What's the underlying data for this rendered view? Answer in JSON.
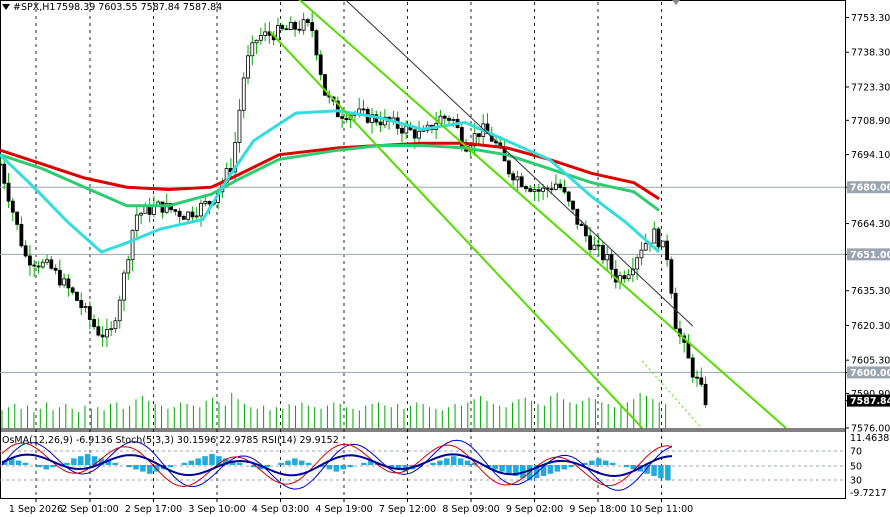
{
  "header": {
    "symbol": "#SPX,H1",
    "ohlc": "7598.39 7603.55 7587.84 7587.84"
  },
  "indicator_header": "OsMA(12,26,9) -6.9136  Stoch(5,3,3) 30.1596 22.9785  RSI(14) 29.9152",
  "colors": {
    "background": "#ffffff",
    "candle": "#00aa00",
    "volume": "#00aa00",
    "ma_red": "#dd0000",
    "ma_green": "#2ecc71",
    "ma_cyan": "#33dddd",
    "channel": "#55dd00",
    "osma": "#22aadd",
    "stoch_main": "#0000cc",
    "stoch_signal": "#cc0000",
    "rsi": "#000099",
    "level_line": "#9aa5b0",
    "price_tag": "#000000"
  },
  "chart_data": {
    "type": "candlestick",
    "instrument": "#SPX",
    "timeframe": "H1",
    "y_ticks": [
      "7753.30",
      "7738.30",
      "7723.30",
      "7708.90",
      "7694.10",
      "7680.00",
      "7664.30",
      "7651.00",
      "7635.30",
      "7620.30",
      "7605.30",
      "7600.00",
      "7590.90",
      "7587.84",
      "7576.00"
    ],
    "ylim": [
      7576.0,
      7760.0
    ],
    "x_ticks": [
      "1 Sep 2026",
      "2 Sep 01:00",
      "2 Sep 17:00",
      "3 Sep 10:00",
      "4 Sep 03:00",
      "4 Sep 19:00",
      "7 Sep 12:00",
      "8 Sep 09:00",
      "9 Sep 02:00",
      "9 Sep 18:00",
      "10 Sep 11:00"
    ],
    "horizontal_levels": [
      7680.0,
      7651.0,
      7600.0
    ],
    "last_price": 7587.84,
    "close_path": [
      [
        0,
        7690
      ],
      [
        0.03,
        7650
      ],
      [
        0.06,
        7645
      ],
      [
        0.09,
        7632
      ],
      [
        0.115,
        7618
      ],
      [
        0.13,
        7615
      ],
      [
        0.145,
        7638
      ],
      [
        0.16,
        7668
      ],
      [
        0.19,
        7672
      ],
      [
        0.22,
        7668
      ],
      [
        0.25,
        7674
      ],
      [
        0.275,
        7690
      ],
      [
        0.29,
        7732
      ],
      [
        0.305,
        7745
      ],
      [
        0.32,
        7746
      ],
      [
        0.34,
        7748
      ],
      [
        0.36,
        7750
      ],
      [
        0.37,
        7748
      ],
      [
        0.385,
        7720
      ],
      [
        0.4,
        7712
      ],
      [
        0.42,
        7712
      ],
      [
        0.44,
        7710
      ],
      [
        0.46,
        7708
      ],
      [
        0.48,
        7705
      ],
      [
        0.5,
        7702
      ],
      [
        0.52,
        7710
      ],
      [
        0.535,
        7710
      ],
      [
        0.55,
        7698
      ],
      [
        0.57,
        7705
      ],
      [
        0.585,
        7700
      ],
      [
        0.6,
        7688
      ],
      [
        0.62,
        7682
      ],
      [
        0.64,
        7678
      ],
      [
        0.66,
        7682
      ],
      [
        0.685,
        7664
      ],
      [
        0.7,
        7655
      ],
      [
        0.72,
        7648
      ],
      [
        0.73,
        7640
      ],
      [
        0.745,
        7645
      ],
      [
        0.76,
        7655
      ],
      [
        0.775,
        7660
      ],
      [
        0.79,
        7650
      ],
      [
        0.8,
        7620
      ],
      [
        0.81,
        7610
      ],
      [
        0.82,
        7600
      ],
      [
        0.83,
        7592
      ],
      [
        0.835,
        7588
      ]
    ],
    "volume": [
      11,
      13,
      15,
      12,
      14,
      10,
      12,
      16,
      11,
      13,
      15,
      12,
      10,
      14,
      12,
      13,
      11,
      15,
      16,
      12,
      14,
      18,
      20,
      17,
      15,
      14,
      12,
      13,
      16,
      15,
      14,
      13,
      17,
      19,
      16,
      14,
      22,
      18,
      15,
      13,
      12,
      14,
      11,
      13,
      12,
      15,
      14,
      16,
      14,
      13,
      12,
      14,
      16,
      15,
      13,
      12,
      11,
      14,
      15,
      16,
      14,
      13,
      15,
      12,
      14,
      16,
      15,
      13,
      12,
      11,
      13,
      15,
      14,
      16,
      18,
      20,
      17,
      15,
      14,
      13,
      16,
      18,
      19,
      17,
      15,
      14,
      20,
      22,
      18,
      16,
      15,
      17,
      19,
      18,
      16,
      15,
      13,
      14,
      16,
      18,
      22,
      20,
      18,
      16,
      15
    ],
    "moving_averages": [
      {
        "color": "red",
        "points": [
          [
            0,
            7696
          ],
          [
            0.05,
            7690
          ],
          [
            0.1,
            7684
          ],
          [
            0.15,
            7680
          ],
          [
            0.2,
            7679
          ],
          [
            0.25,
            7680
          ],
          [
            0.28,
            7685
          ],
          [
            0.33,
            7694
          ],
          [
            0.4,
            7697
          ],
          [
            0.45,
            7698
          ],
          [
            0.5,
            7699
          ],
          [
            0.55,
            7699
          ],
          [
            0.6,
            7697
          ],
          [
            0.65,
            7692
          ],
          [
            0.7,
            7686
          ],
          [
            0.75,
            7682
          ],
          [
            0.78,
            7675
          ]
        ]
      },
      {
        "color": "green",
        "points": [
          [
            0,
            7694
          ],
          [
            0.05,
            7688
          ],
          [
            0.1,
            7680
          ],
          [
            0.15,
            7672
          ],
          [
            0.2,
            7672
          ],
          [
            0.25,
            7677
          ],
          [
            0.28,
            7683
          ],
          [
            0.33,
            7692
          ],
          [
            0.4,
            7696
          ],
          [
            0.45,
            7698
          ],
          [
            0.5,
            7698
          ],
          [
            0.55,
            7697
          ],
          [
            0.6,
            7694
          ],
          [
            0.65,
            7688
          ],
          [
            0.7,
            7682
          ],
          [
            0.75,
            7678
          ],
          [
            0.78,
            7670
          ]
        ]
      },
      {
        "color": "cyan",
        "points": [
          [
            0,
            7694
          ],
          [
            0.04,
            7680
          ],
          [
            0.08,
            7665
          ],
          [
            0.12,
            7652
          ],
          [
            0.15,
            7656
          ],
          [
            0.19,
            7662
          ],
          [
            0.24,
            7666
          ],
          [
            0.27,
            7684
          ],
          [
            0.3,
            7700
          ],
          [
            0.35,
            7712
          ],
          [
            0.4,
            7713
          ],
          [
            0.45,
            7710
          ],
          [
            0.5,
            7705
          ],
          [
            0.55,
            7708
          ],
          [
            0.6,
            7700
          ],
          [
            0.65,
            7692
          ],
          [
            0.7,
            7676
          ],
          [
            0.74,
            7665
          ],
          [
            0.78,
            7652
          ]
        ]
      }
    ],
    "regression_channel": {
      "upper": [
        [
          0.32,
          7772
        ],
        [
          0.93,
          7576
        ]
      ],
      "middle": [
        [
          0.4,
          7764
        ],
        [
          0.82,
          7620
        ]
      ],
      "lower": [
        [
          0.32,
          7747
        ],
        [
          0.76,
          7576
        ]
      ],
      "dotted_extension": [
        [
          0.76,
          7605
        ],
        [
          0.83,
          7576
        ]
      ]
    },
    "indicator_window": {
      "levels": [
        "70",
        "50",
        "30"
      ],
      "y_ticks": [
        "11.4638",
        "-9.7217"
      ],
      "osma": [
        2,
        3,
        2,
        1,
        0,
        -1,
        -2,
        -1,
        0,
        1,
        3,
        4,
        5,
        4,
        3,
        2,
        1,
        0,
        -1,
        -2,
        -3,
        -4,
        -3,
        -2,
        -1,
        0,
        1,
        2,
        3,
        4,
        5,
        4,
        3,
        2,
        1,
        0,
        -1,
        -2,
        -1,
        0,
        1,
        2,
        3,
        2,
        1,
        0,
        -1,
        -2,
        -3,
        -2,
        -1,
        0,
        1,
        2,
        1,
        0,
        -1,
        -2,
        -3,
        -2,
        -1,
        0,
        1,
        2,
        3,
        4,
        3,
        2,
        1,
        0,
        -1,
        -2,
        -3,
        -4,
        -5,
        -6,
        -7,
        -6,
        -5,
        -4,
        -3,
        -2,
        -1,
        0,
        1,
        2,
        3,
        2,
        1,
        0,
        -1,
        -2,
        -3,
        -4,
        -5,
        -6,
        -7
      ]
    }
  }
}
